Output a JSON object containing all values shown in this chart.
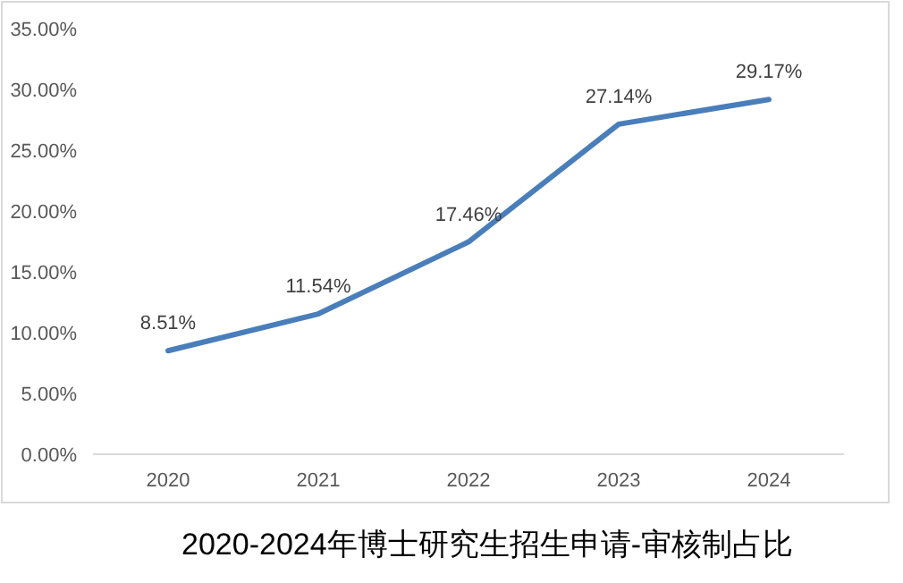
{
  "chart_data": {
    "type": "line",
    "title": "2020-2024年博士研究生招生申请-审核制占比",
    "categories": [
      "2020",
      "2021",
      "2022",
      "2023",
      "2024"
    ],
    "series": [
      {
        "color": "#4a7ebb",
        "values": [
          8.51,
          11.54,
          17.46,
          27.14,
          29.17
        ]
      }
    ],
    "value_labels": [
      "8.51%",
      "11.54%",
      "17.46%",
      "27.14%",
      "29.17%"
    ],
    "ylim": [
      0,
      35
    ],
    "yticks": [
      {
        "value": 0,
        "label": "0.00%"
      },
      {
        "value": 5,
        "label": "5.00%"
      },
      {
        "value": 10,
        "label": "10.00%"
      },
      {
        "value": 15,
        "label": "15.00%"
      },
      {
        "value": 20,
        "label": "20.00%"
      },
      {
        "value": 25,
        "label": "25.00%"
      },
      {
        "value": 30,
        "label": "30.00%"
      },
      {
        "value": 35,
        "label": "35.00%"
      }
    ],
    "grid": false,
    "marker": "none",
    "line_style": "solid"
  }
}
